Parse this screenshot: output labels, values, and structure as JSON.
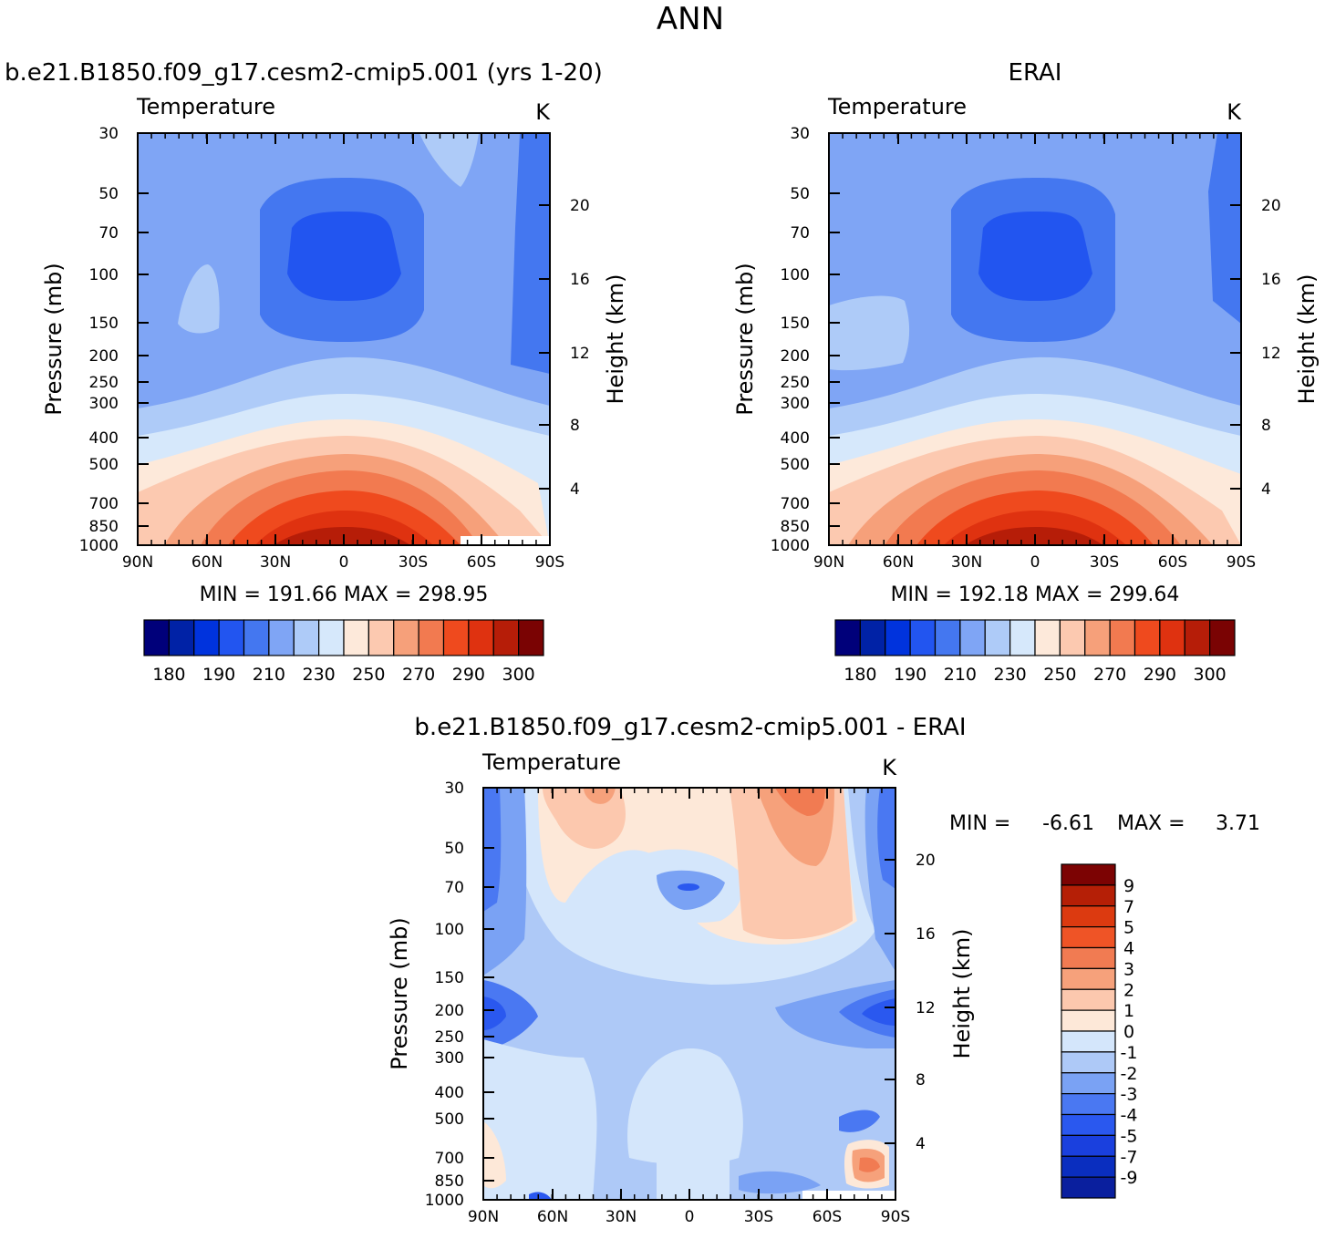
{
  "figure_title": "ANN",
  "colors": {
    "abs_scale": [
      "#00007a",
      "#0022a6",
      "#0033dd",
      "#2255f0",
      "#4477f0",
      "#7fa5f5",
      "#aecbf8",
      "#d6e8fb",
      "#fde9da",
      "#fcc9b0",
      "#f6a07a",
      "#f27a50",
      "#ef4a1e",
      "#df3210",
      "#b61d08",
      "#7a0303"
    ],
    "diff_scale": [
      "#0a1f9e",
      "#0a2ebf",
      "#1a40de",
      "#2a58ef",
      "#4a78f2",
      "#7aa2f4",
      "#aec9f7",
      "#d4e6fb",
      "#fde8d8",
      "#fcc8ae",
      "#f6a17b",
      "#f17b52",
      "#ef5426",
      "#dc3a10",
      "#b51f06",
      "#7c0303"
    ]
  },
  "panel_left": {
    "model_title": "b.e21.B1850.f09_g17.cesm2-cmip5.001 (yrs 1-20)",
    "variable": "Temperature",
    "units": "K",
    "ylabel": "Pressure (mb)",
    "y2label": "Height (km)",
    "stats": "MIN = 191.66   MAX = 298.95"
  },
  "panel_right": {
    "model_title": "ERAI",
    "variable": "Temperature",
    "units": "K",
    "ylabel": "Pressure (mb)",
    "y2label": "Height (km)",
    "stats": "MIN = 192.18   MAX = 299.64"
  },
  "panel_diff": {
    "model_title": "b.e21.B1850.f09_g17.cesm2-cmip5.001 - ERAI",
    "variable": "Temperature",
    "units": "K",
    "ylabel": "Pressure (mb)",
    "y2label": "Height (km)",
    "stats_min_label": "MIN =",
    "stats_min": "-6.61",
    "stats_max_label": "MAX =",
    "stats_max": "3.71"
  },
  "axis_ticks": {
    "lat": [
      "90N",
      "60N",
      "30N",
      "0",
      "30S",
      "60S",
      "90S"
    ],
    "pressure": [
      "30",
      "50",
      "70",
      "100",
      "150",
      "200",
      "250",
      "300",
      "400",
      "500",
      "700",
      "850",
      "1000"
    ],
    "height_abs": [
      "20",
      "16",
      "12",
      "8",
      "4"
    ],
    "height_diff": [
      "20",
      "16",
      "12",
      "8",
      "4"
    ],
    "abs_colorbar": [
      "180",
      "190",
      "210",
      "230",
      "250",
      "270",
      "290",
      "300"
    ],
    "diff_colorbar": [
      "9",
      "7",
      "5",
      "4",
      "3",
      "2",
      "1",
      "0",
      "-1",
      "-2",
      "-3",
      "-4",
      "-5",
      "-7",
      "-9"
    ]
  },
  "chart_data": [
    {
      "type": "heatmap",
      "title": "b.e21.B1850.f09_g17.cesm2-cmip5.001 (yrs 1-20)",
      "subtitle": "Temperature",
      "units": "K",
      "xlabel": "",
      "ylabel": "Pressure (mb)",
      "y2label": "Height (km)",
      "x": [
        "90N",
        "60N",
        "30N",
        "0",
        "30S",
        "60S",
        "90S"
      ],
      "y": [
        30,
        50,
        70,
        100,
        150,
        200,
        250,
        300,
        400,
        500,
        700,
        850,
        1000
      ],
      "min": 191.66,
      "max": 298.95,
      "colorbar_levels": [
        180,
        190,
        210,
        230,
        250,
        270,
        290,
        300
      ]
    },
    {
      "type": "heatmap",
      "title": "ERAI",
      "subtitle": "Temperature",
      "units": "K",
      "xlabel": "",
      "ylabel": "Pressure (mb)",
      "y2label": "Height (km)",
      "x": [
        "90N",
        "60N",
        "30N",
        "0",
        "30S",
        "60S",
        "90S"
      ],
      "y": [
        30,
        50,
        70,
        100,
        150,
        200,
        250,
        300,
        400,
        500,
        700,
        850,
        1000
      ],
      "min": 192.18,
      "max": 299.64,
      "colorbar_levels": [
        180,
        190,
        210,
        230,
        250,
        270,
        290,
        300
      ]
    },
    {
      "type": "heatmap",
      "title": "b.e21.B1850.f09_g17.cesm2-cmip5.001 - ERAI",
      "subtitle": "Temperature",
      "units": "K",
      "xlabel": "",
      "ylabel": "Pressure (mb)",
      "y2label": "Height (km)",
      "x": [
        "90N",
        "60N",
        "30N",
        "0",
        "30S",
        "60S",
        "90S"
      ],
      "y": [
        30,
        50,
        70,
        100,
        150,
        200,
        250,
        300,
        400,
        500,
        700,
        850,
        1000
      ],
      "min": -6.61,
      "max": 3.71,
      "colorbar_levels": [
        9,
        7,
        5,
        4,
        3,
        2,
        1,
        0,
        -1,
        -2,
        -3,
        -4,
        -5,
        -7,
        -9
      ]
    }
  ]
}
